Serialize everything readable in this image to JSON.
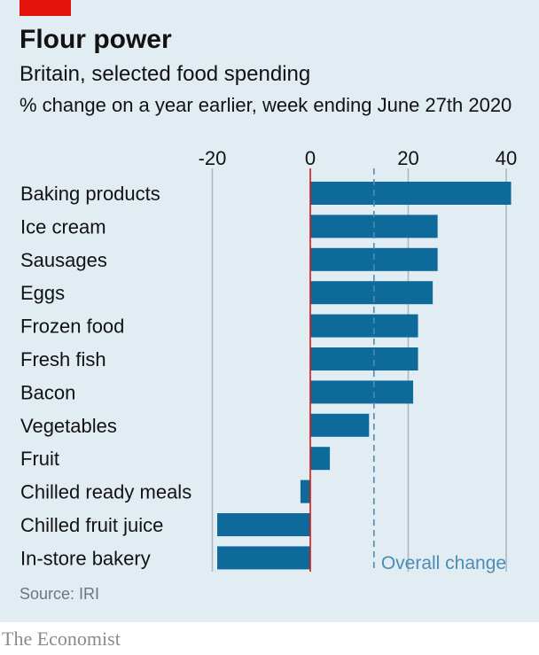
{
  "title": "Flour power",
  "subtitle": "Britain, selected food spending",
  "units_note": "% change on a year earlier, week ending June 27th 2020",
  "source": "Source: IRI",
  "brand": "The Economist",
  "colors": {
    "background": "#e2ecf3",
    "bar": "#0e6a9a",
    "zero_line": "#e3120b",
    "grid": "#a9bac5",
    "overall_line": "#4d8cb5",
    "brand_red": "#e3120b"
  },
  "chart_data": {
    "type": "bar",
    "orientation": "horizontal",
    "categories": [
      "Baking products",
      "Ice cream",
      "Sausages",
      "Eggs",
      "Frozen food",
      "Fresh fish",
      "Bacon",
      "Vegetables",
      "Fruit",
      "Chilled ready meals",
      "Chilled fruit juice",
      "In-store bakery"
    ],
    "values": [
      41,
      26,
      26,
      25,
      22,
      22,
      21,
      12,
      4,
      -2,
      -19,
      -19
    ],
    "xlim": [
      -20,
      40
    ],
    "x_ticks": [
      -20,
      0,
      20,
      40
    ],
    "x_tick_labels": [
      "-20",
      "0",
      "20",
      "40"
    ],
    "x_axis_position": "top",
    "grid": true,
    "reference_line": {
      "value": 13,
      "label": "Overall change",
      "style": "dashed"
    }
  }
}
